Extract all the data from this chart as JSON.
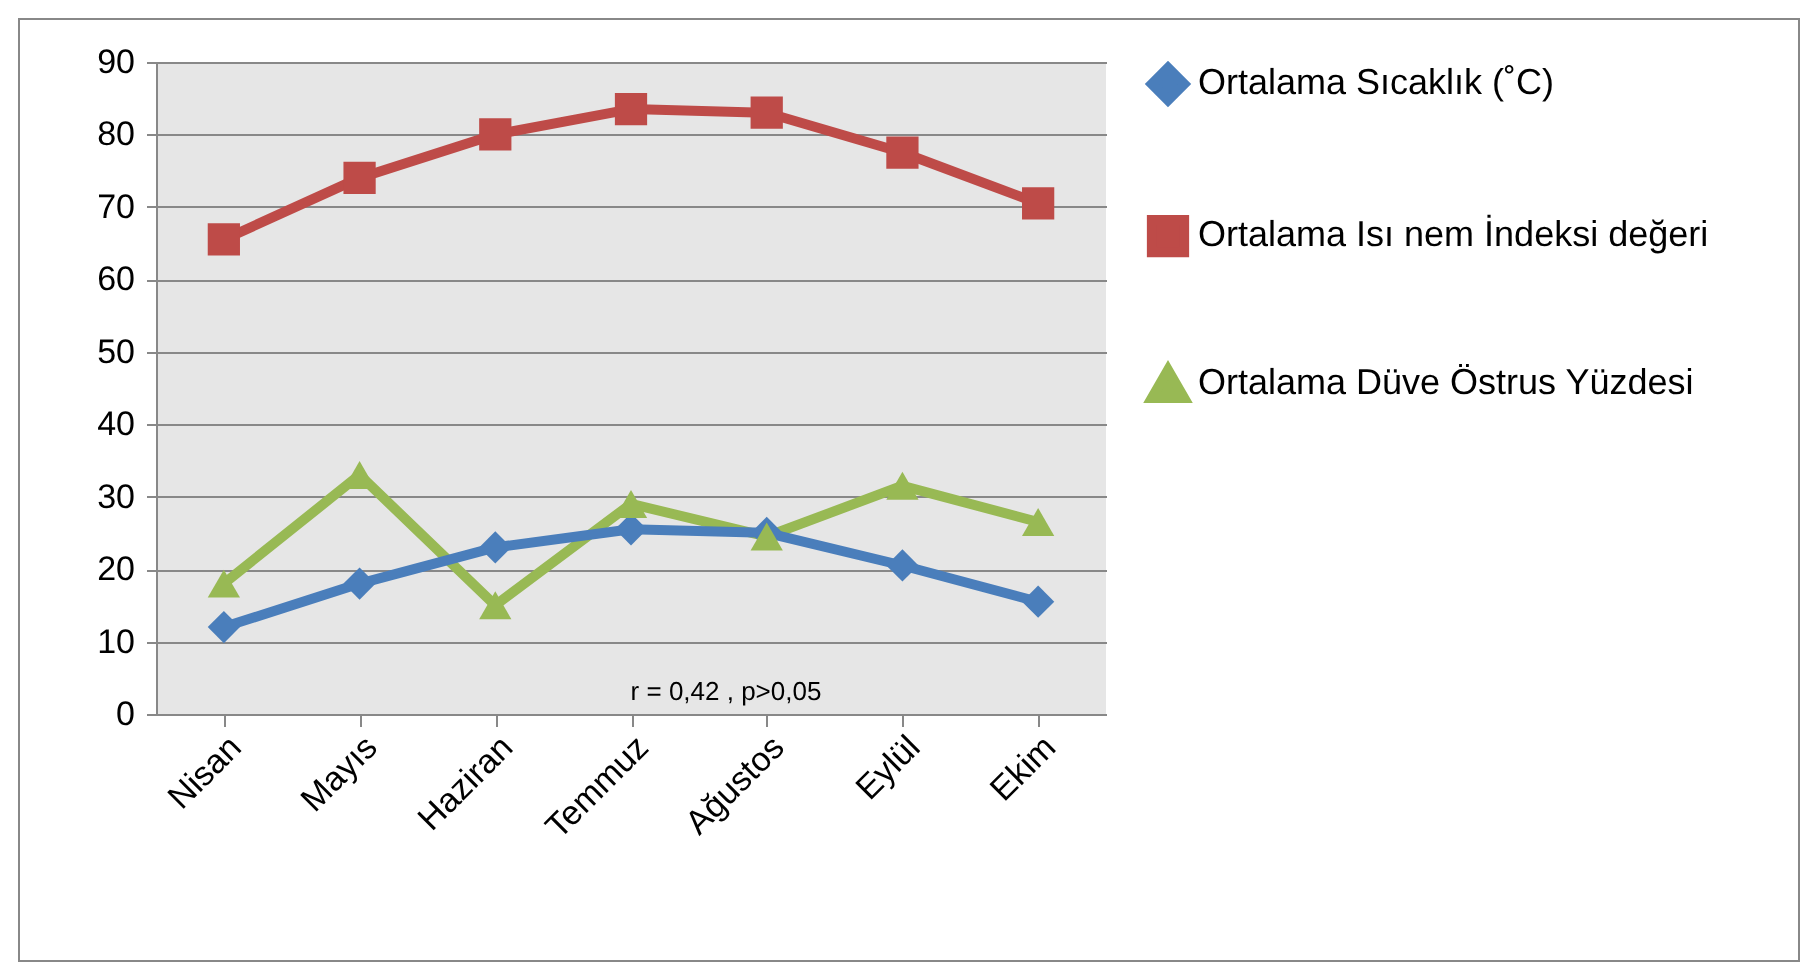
{
  "chart_data": {
    "type": "line",
    "categories": [
      "Nisan",
      "Mayıs",
      "Haziran",
      "Temmuz",
      "Ağustos",
      "Eylül",
      "Ekim"
    ],
    "series": [
      {
        "name": "Ortalama Sıcaklık (˚C)",
        "color": "#4a7ebb",
        "marker": "diamond",
        "values": [
          12,
          18,
          23,
          25.5,
          25,
          20.5,
          15.5
        ]
      },
      {
        "name": "Ortalama Isı nem İndeksi değeri",
        "color": "#be4b48",
        "marker": "square",
        "values": [
          65.5,
          74,
          80,
          83.5,
          83,
          77.5,
          70.5
        ]
      },
      {
        "name": "Ortalama Düve Östrus Yüzdesi",
        "color": "#98b954",
        "marker": "triangle",
        "values": [
          18,
          33,
          15,
          29,
          24.5,
          31.5,
          26.5
        ]
      }
    ],
    "ylim": [
      0,
      90
    ],
    "yticks": [
      0,
      10,
      20,
      30,
      40,
      50,
      60,
      70,
      80,
      90
    ],
    "grid": "y",
    "legend": "right",
    "annotations": [
      "r = 0,42 , p>0,05"
    ]
  }
}
